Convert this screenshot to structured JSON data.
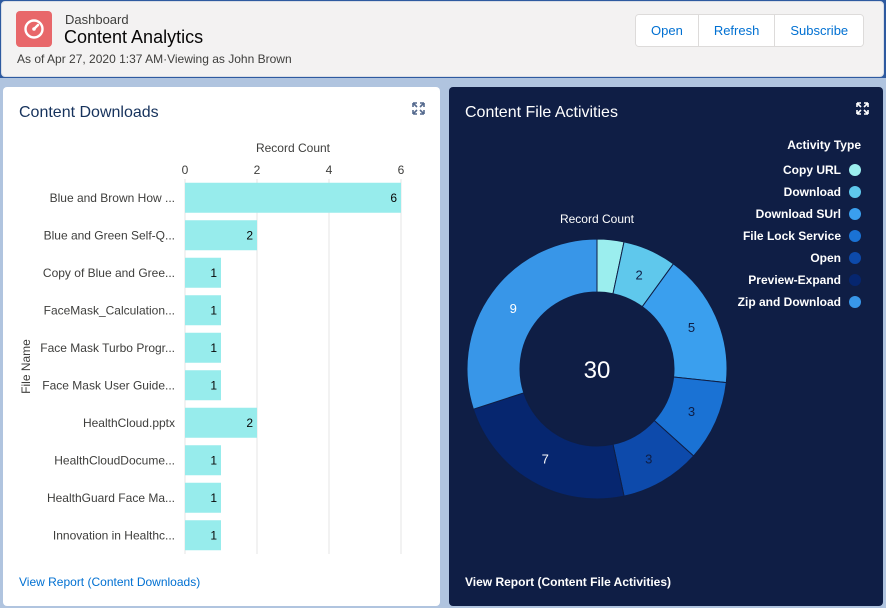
{
  "header": {
    "label": "Dashboard",
    "title": "Content Analytics",
    "subtitle": "As of Apr 27, 2020 1:37 AM·Viewing as John Brown",
    "buttons": [
      "Open",
      "Refresh",
      "Subscribe"
    ]
  },
  "left_panel": {
    "title": "Content Downloads",
    "link": "View Report (Content Downloads)"
  },
  "right_panel": {
    "title": "Content File Activities",
    "link": "View Report (Content File Activities)",
    "legend_title": "Activity Type"
  },
  "chart_data": [
    {
      "type": "bar",
      "orientation": "horizontal",
      "title": "Content Downloads",
      "xlabel": "Record Count",
      "ylabel": "File Name",
      "xlim": [
        0,
        6
      ],
      "x_ticks": [
        0,
        2,
        4,
        6
      ],
      "categories": [
        "Blue and Brown How ...",
        "Blue and Green Self-Q...",
        "Copy of Blue and Gree...",
        "FaceMask_Calculation...",
        "Face Mask Turbo Progr...",
        "Face Mask User Guide...",
        "HealthCloud.pptx",
        "HealthCloudDocume...",
        "HealthGuard Face Ma...",
        "Innovation in Healthc..."
      ],
      "values": [
        6,
        2,
        1,
        1,
        1,
        1,
        2,
        1,
        1,
        1
      ],
      "bar_color": "#97ecec",
      "grid": true
    },
    {
      "type": "pie",
      "donut": true,
      "title": "Content File Activities",
      "center_label": "Record Count",
      "total": "30",
      "legend_title": "Activity Type",
      "legend_position": "top-right",
      "slices": [
        {
          "name": "Copy URL",
          "value": 1,
          "color": "#9beeee",
          "label": ""
        },
        {
          "name": "Download",
          "value": 2,
          "color": "#5fc8ec",
          "label": "2"
        },
        {
          "name": "Download SUrl",
          "value": 5,
          "color": "#3a9fee",
          "label": "5"
        },
        {
          "name": "File Lock Service",
          "value": 3,
          "color": "#1a72d4",
          "label": "3"
        },
        {
          "name": "Open",
          "value": 3,
          "color": "#0d4aab",
          "label": "3"
        },
        {
          "name": "Preview-Expand",
          "value": 7,
          "color": "#06266f",
          "label": "7"
        },
        {
          "name": "Zip and Download",
          "value": 9,
          "color": "#3896e8",
          "label": "9"
        }
      ]
    }
  ]
}
